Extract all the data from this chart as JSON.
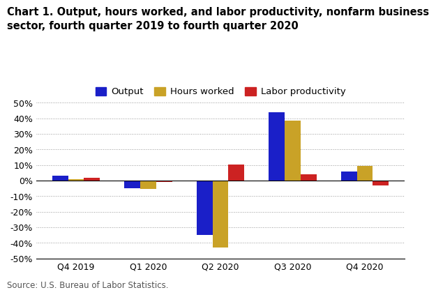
{
  "title_line1": "Chart 1. Output, hours worked, and labor productivity, nonfarm business",
  "title_line2": "sector, fourth quarter 2019 to fourth quarter 2020",
  "categories": [
    "Q4 2019",
    "Q1 2020",
    "Q2 2020",
    "Q3 2020",
    "Q4 2020"
  ],
  "series": {
    "Output": [
      3.0,
      -5.0,
      -35.0,
      44.0,
      6.0
    ],
    "Hours worked": [
      1.0,
      -5.5,
      -43.0,
      38.5,
      9.5
    ],
    "Labor productivity": [
      2.0,
      -0.8,
      10.5,
      4.0,
      -3.0
    ]
  },
  "colors": {
    "Output": "#1A1FC8",
    "Hours worked": "#C9A227",
    "Labor productivity": "#CC2222"
  },
  "ylim": [
    -50,
    50
  ],
  "yticks": [
    -50,
    -40,
    -30,
    -20,
    -10,
    0,
    10,
    20,
    30,
    40,
    50
  ],
  "ytick_labels": [
    "-50%",
    "-40%",
    "-30%",
    "-20%",
    "-10%",
    "0%",
    "10%",
    "20%",
    "30%",
    "40%",
    "50%"
  ],
  "source": "Source: U.S. Bureau of Labor Statistics.",
  "bar_width": 0.22,
  "background_color": "#ffffff",
  "grid_color": "#999999",
  "title_fontsize": 10.5,
  "legend_fontsize": 9.5,
  "axis_fontsize": 9,
  "source_fontsize": 8.5
}
